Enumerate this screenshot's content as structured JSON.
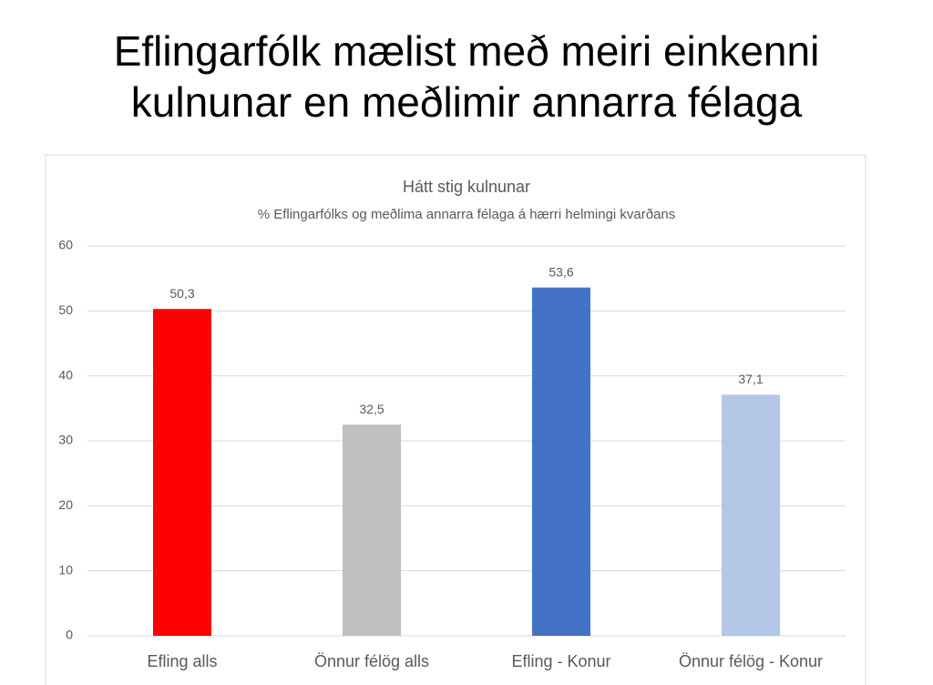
{
  "slide": {
    "title_lines": [
      "Eflingarfólk mælist með meiri einkenni",
      "kulnunar en meðlimir annarra félaga"
    ]
  },
  "chart_data": {
    "type": "bar",
    "title": "Hátt stig kulnunar",
    "subtitle": "% Eflingarfólks og meðlima annarra félaga  á hærri helmingi kvarðans",
    "categories": [
      "Efling alls",
      "Önnur félög alls",
      "Efling - Konur",
      "Önnur félög - Konur"
    ],
    "values": [
      50.3,
      32.5,
      53.6,
      37.1
    ],
    "value_labels": [
      "50,3",
      "32,5",
      "53,6",
      "37,1"
    ],
    "colors": [
      "#ff0000",
      "#bfbfbf",
      "#4472c4",
      "#b4c7e7"
    ],
    "ylim": [
      0,
      60
    ],
    "yticks": [
      0,
      10,
      20,
      30,
      40,
      50,
      60
    ],
    "grid": true
  }
}
